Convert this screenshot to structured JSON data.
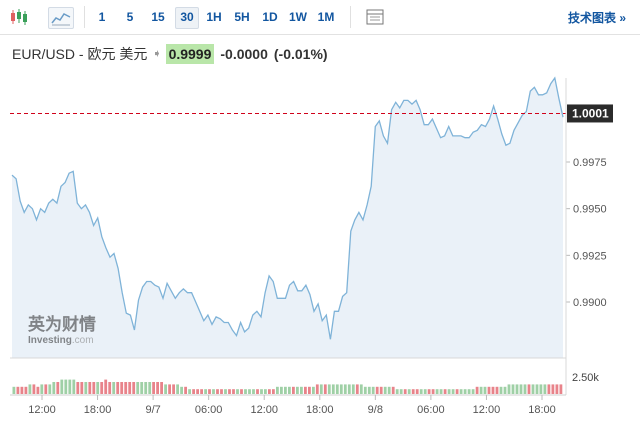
{
  "toolbar": {
    "icons": [
      "candlestick-icon",
      "area-chart-icon",
      "table-icon"
    ],
    "intervals": [
      "1",
      "5",
      "15",
      "30",
      "1H",
      "5H",
      "1D",
      "1W",
      "1M"
    ],
    "active_interval": "30",
    "tech_link": "技术图表 »"
  },
  "quote": {
    "pair": "EUR/USD - 欧元 美元",
    "arrow": "➧",
    "price": "0.9999",
    "change": "-0.0000",
    "change_pct": "(-0.01%)"
  },
  "watermark": {
    "cn": "英为财情",
    "en": "Investing",
    "suffix": ".com"
  },
  "colors": {
    "line": "#7fb3d8",
    "area": "#e6eff7",
    "reference": "#d0021b",
    "volume_up": "#9fd0a6",
    "volume_down": "#e8838a",
    "price_label_bg": "#2b2b2b"
  },
  "chart_data": {
    "type": "area",
    "title": "EUR/USD",
    "ylim": [
      0.987,
      1.002
    ],
    "ytick_values": [
      0.99,
      0.9925,
      0.995,
      0.9975
    ],
    "ytick_labels": [
      "0.9900",
      "0.9925",
      "0.9950",
      "0.9975"
    ],
    "xtick_labels": [
      "12:00",
      "18:00",
      "9/7",
      "06:00",
      "12:00",
      "18:00",
      "9/8",
      "06:00",
      "12:00",
      "18:00"
    ],
    "reference_line": {
      "value": 1.0001,
      "label": "1.0001",
      "style": "dashed"
    },
    "grid": false,
    "price_series": [
      0.9968,
      0.9966,
      0.9954,
      0.9948,
      0.9952,
      0.995,
      0.9944,
      0.995,
      0.9948,
      0.9953,
      0.9955,
      0.9953,
      0.9962,
      0.9964,
      0.9969,
      0.997,
      0.9953,
      0.995,
      0.9952,
      0.9948,
      0.9941,
      0.9945,
      0.9935,
      0.9929,
      0.9924,
      0.9926,
      0.9918,
      0.9905,
      0.9894,
      0.9893,
      0.9885,
      0.9901,
      0.9908,
      0.9911,
      0.9911,
      0.9909,
      0.9908,
      0.9902,
      0.991,
      0.9906,
      0.9902,
      0.9905,
      0.9907,
      0.9905,
      0.9905,
      0.99,
      0.9895,
      0.989,
      0.9893,
      0.9888,
      0.9892,
      0.9891,
      0.9889,
      0.9889,
      0.9885,
      0.9882,
      0.9889,
      0.9884,
      0.9886,
      0.9893,
      0.9895,
      0.9892,
      0.9905,
      0.9914,
      0.9911,
      0.9902,
      0.9902,
      0.9902,
      0.9909,
      0.9911,
      0.9906,
      0.9906,
      0.9909,
      0.9904,
      0.9895,
      0.9899,
      0.989,
      0.9893,
      0.988,
      0.9895,
      0.9895,
      0.9903,
      0.9905,
      0.9938,
      0.9944,
      0.9948,
      0.9944,
      0.9952,
      0.9962,
      0.9994,
      0.9997,
      0.9989,
      0.9985,
      1.0003,
      1.0007,
      1.0004,
      1.0008,
      1.0008,
      1.0006,
      1.0008,
      1.0003,
      0.9995,
      0.9995,
      0.9998,
      0.9993,
      0.9988,
      0.9989,
      0.9994,
      0.9989,
      0.9989,
      0.9989,
      0.9988,
      0.9988,
      0.9991,
      0.9992,
      0.9995,
      0.9994,
      0.9998,
      1.0005,
      0.9998,
      0.999,
      0.9984,
      0.9985,
      0.9992,
      0.9996,
      1.0,
      1.0002,
      1.0013,
      1.0015,
      1.0011,
      1.0011,
      1.0012,
      1.0017,
      1.002,
      1.0009,
      0.9999
    ],
    "volume_series": [
      0.3,
      0.3,
      0.3,
      0.3,
      0.4,
      0.4,
      0.3,
      0.4,
      0.4,
      0.4,
      0.5,
      0.5,
      0.6,
      0.6,
      0.6,
      0.6,
      0.5,
      0.5,
      0.5,
      0.5,
      0.5,
      0.5,
      0.5,
      0.6,
      0.5,
      0.5,
      0.5,
      0.5,
      0.5,
      0.5,
      0.5,
      0.5,
      0.5,
      0.5,
      0.5,
      0.5,
      0.5,
      0.5,
      0.4,
      0.4,
      0.4,
      0.4,
      0.3,
      0.3,
      0.2,
      0.2,
      0.2,
      0.2,
      0.2,
      0.2,
      0.2,
      0.2,
      0.2,
      0.2,
      0.2,
      0.2,
      0.2,
      0.2,
      0.2,
      0.2,
      0.2,
      0.2,
      0.2,
      0.2,
      0.2,
      0.2,
      0.3,
      0.3,
      0.3,
      0.3,
      0.3,
      0.3,
      0.3,
      0.3,
      0.3,
      0.3,
      0.4,
      0.4,
      0.4,
      0.4,
      0.4,
      0.4,
      0.4,
      0.4,
      0.4,
      0.4,
      0.4,
      0.4,
      0.3,
      0.3,
      0.3,
      0.3,
      0.3,
      0.3,
      0.3,
      0.3,
      0.2,
      0.2,
      0.2,
      0.2,
      0.2,
      0.2,
      0.2,
      0.2,
      0.2,
      0.2,
      0.2,
      0.2,
      0.2,
      0.2,
      0.2,
      0.2,
      0.2,
      0.2,
      0.2,
      0.2,
      0.3,
      0.3,
      0.3,
      0.3,
      0.3,
      0.3,
      0.3,
      0.3,
      0.4,
      0.4,
      0.4,
      0.4,
      0.4,
      0.4,
      0.4,
      0.4,
      0.4,
      0.4,
      0.4,
      0.4,
      0.4,
      0.4
    ],
    "volume_axis_label": "2.50k"
  }
}
